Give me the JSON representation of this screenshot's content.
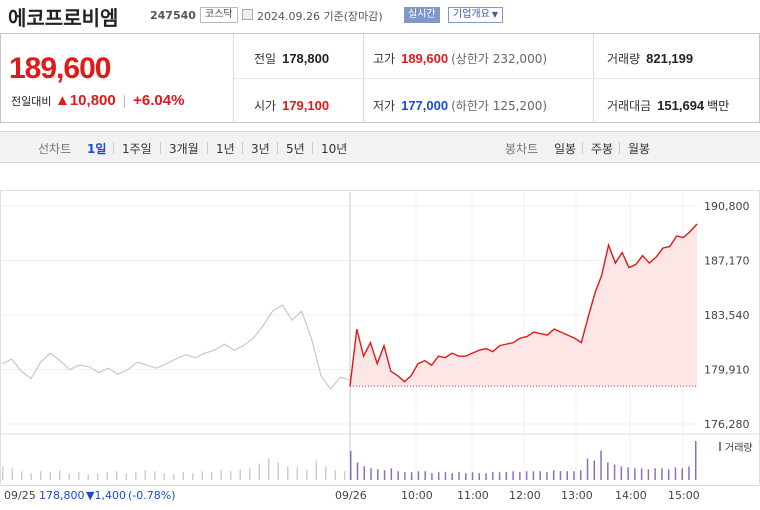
{
  "header": {
    "name": "에코프로비엠",
    "code": "247540",
    "market": "코스닥",
    "date": "2024.09.26 기준(장마감)",
    "realtime": "실시간",
    "company_info": "기업개요"
  },
  "quote": {
    "price": "189,600",
    "change_label": "전일대비",
    "change_amount": "10,800",
    "change_rate": "+6.04%",
    "prev_close_label": "전일",
    "prev_close": "178,800",
    "open_label": "시가",
    "open": "179,100",
    "high_label": "고가",
    "high": "189,600",
    "upper_limit": "(상한가 232,000)",
    "low_label": "저가",
    "low": "177,000",
    "lower_limit": "(하한가 125,200)",
    "volume_label": "거래량",
    "volume": "821,199",
    "value_label": "거래대금",
    "value": "151,694",
    "value_unit": "백만"
  },
  "period_bar": {
    "line_label": "선차트",
    "line_periods": [
      "1일",
      "1주일",
      "3개월",
      "1년",
      "3년",
      "5년",
      "10년"
    ],
    "active": "1일",
    "candle_label": "봉차트",
    "candle_periods": [
      "일봉",
      "주봉",
      "월봉"
    ]
  },
  "colors": {
    "up": "#e01919",
    "down": "#1a4bd6",
    "area_fill": "#fde6e6",
    "prev_day_line": "#c8c8c8",
    "volume_prev": "#cfcfcf",
    "volume_today": "#8b6fc7"
  },
  "chart_data": {
    "type": "area",
    "y_ticks": [
      190800,
      187170,
      183540,
      179910,
      176280
    ],
    "y_tick_labels": [
      "190,800",
      "187,170",
      "183,540",
      "179,910",
      "176,280"
    ],
    "ylim": [
      176280,
      190800
    ],
    "reference_price": 178800,
    "x_tick_labels": [
      "09/26",
      "10:00",
      "11:00",
      "12:00",
      "13:00",
      "14:00",
      "15:00"
    ],
    "volume_legend": "거래량",
    "prev_day_summary": {
      "date": "09/25",
      "close": "178,800",
      "change": "▼1,400",
      "rate": "(-0.78%)"
    },
    "previous_day_series": [
      180300,
      180600,
      179800,
      179300,
      180400,
      181000,
      180500,
      179900,
      180200,
      180100,
      179700,
      180000,
      179600,
      179900,
      180400,
      180200,
      180000,
      180300,
      180600,
      180900,
      180700,
      181000,
      181200,
      181600,
      181200,
      181500,
      182000,
      182800,
      183800,
      184200,
      183200,
      183800,
      182000,
      179500,
      178600,
      179400,
      179200
    ],
    "today_series": [
      178800,
      182600,
      180800,
      181700,
      180300,
      181500,
      179800,
      179500,
      179100,
      179500,
      180300,
      180500,
      180200,
      180800,
      180700,
      181000,
      180800,
      180800,
      181000,
      181200,
      181300,
      181100,
      181500,
      181600,
      181700,
      182000,
      182100,
      182400,
      182300,
      182200,
      182600,
      182400,
      182200,
      182000,
      181700,
      183400,
      185000,
      186200,
      188200,
      187000,
      187700,
      186700,
      186900,
      187500,
      187000,
      187400,
      188000,
      188100,
      188800,
      188700,
      189100,
      189600
    ],
    "previous_day_volume": [
      14,
      12,
      9,
      7,
      9,
      8,
      10,
      7,
      8,
      6,
      7,
      8,
      9,
      7,
      8,
      10,
      9,
      7,
      6,
      8,
      7,
      9,
      8,
      10,
      9,
      11,
      12,
      17,
      22,
      18,
      14,
      13,
      10,
      20,
      14,
      10,
      9
    ],
    "today_volume": [
      30,
      18,
      14,
      12,
      11,
      10,
      12,
      9,
      8,
      8,
      9,
      9,
      7,
      8,
      8,
      7,
      8,
      7,
      8,
      7,
      7,
      8,
      8,
      8,
      9,
      8,
      9,
      9,
      9,
      8,
      10,
      9,
      9,
      9,
      10,
      22,
      20,
      30,
      18,
      16,
      14,
      13,
      12,
      12,
      11,
      12,
      12,
      11,
      13,
      12,
      14,
      40
    ]
  }
}
